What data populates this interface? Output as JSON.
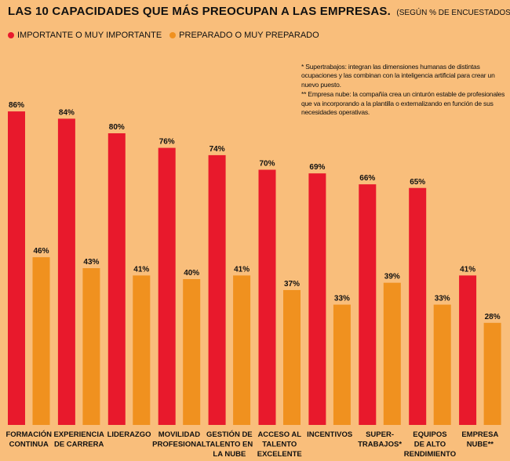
{
  "header": {
    "title": "LAS 10 CAPACIDADES QUE MÁS PREOCUPAN A LAS EMPRESAS.",
    "subtitle": "(SEGÚN % DE ENCUESTADOS)"
  },
  "colors": {
    "background": "#F9BE7B",
    "importante": "#E8192C",
    "preparado": "#F0911F"
  },
  "footnotes": {
    "note1": "* Supertrabajos: integran las dimensiones humanas de distintas ocupaciones y las combinan con la inteligencia artificial para crear un nuevo puesto.",
    "note2": "** Empresa nube: la compañía crea un cinturón estable de profesionales que va incorporando a la plantilla o externalizando en función de sus necesidades operativas."
  },
  "chart_data": {
    "type": "bar",
    "title": "LAS 10 CAPACIDADES QUE MÁS PREOCUPAN A LAS EMPRESAS.",
    "subtitle": "(SEGÚN % DE ENCUESTADOS)",
    "xlabel": "",
    "ylabel": "",
    "ylim": [
      0,
      100
    ],
    "grid": false,
    "legend_position": "top-left",
    "categories": [
      [
        "FORMACIÓN",
        "CONTINUA"
      ],
      [
        "EXPERIENCIA",
        "DE CARRERA"
      ],
      [
        "LIDERAZGO"
      ],
      [
        "MOVILIDAD",
        "PROFESIONAL"
      ],
      [
        "GESTIÓN DE",
        "TALENTO EN",
        "LA NUBE"
      ],
      [
        "ACCESO AL",
        "TALENTO",
        "EXCELENTE"
      ],
      [
        "INCENTIVOS"
      ],
      [
        "SUPER-",
        "TRABAJOS*"
      ],
      [
        "EQUIPOS",
        "DE ALTO",
        "RENDIMIENTO"
      ],
      [
        "EMPRESA",
        "NUBE**"
      ]
    ],
    "series": [
      {
        "name": "IMPORTANTE O MUY IMPORTANTE",
        "color": "#E8192C",
        "values": [
          86,
          84,
          80,
          76,
          74,
          70,
          69,
          66,
          65,
          41
        ],
        "labels": [
          "86%",
          "84%",
          "80%",
          "76%",
          "74%",
          "70%",
          "69%",
          "66%",
          "65%",
          "41%"
        ]
      },
      {
        "name": "PREPARADO O MUY PREPARADO",
        "color": "#F0911F",
        "values": [
          46,
          43,
          41,
          40,
          41,
          37,
          33,
          39,
          33,
          28
        ],
        "labels": [
          "46%",
          "43%",
          "41%",
          "40%",
          "41%",
          "37%",
          "33%",
          "39%",
          "33%",
          "28%"
        ]
      }
    ]
  }
}
